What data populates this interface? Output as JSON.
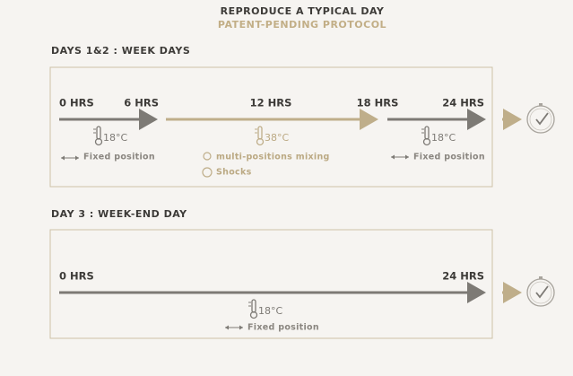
{
  "header": {
    "title": "REPRODUCE A TYPICAL DAY",
    "subtitle": "PATENT-PENDING PROTOCOL"
  },
  "sections": [
    {
      "heading": "DAYS 1&2 : WEEK DAYS",
      "hours": [
        "0 HRS",
        "6 HRS",
        "12 HRS",
        "18 HRS",
        "24 HRS"
      ],
      "temperatures": [
        "18°C",
        "38°C",
        "18°C"
      ],
      "notes": [
        "Fixed position",
        "multi-positions mixing",
        "Shocks",
        "Fixed position"
      ]
    },
    {
      "heading": "DAY 3 : WEEK-END DAY",
      "hours": [
        "0 HRS",
        "24 HRS"
      ],
      "temperatures": [
        "18°C"
      ],
      "notes": [
        "Fixed position"
      ]
    }
  ]
}
